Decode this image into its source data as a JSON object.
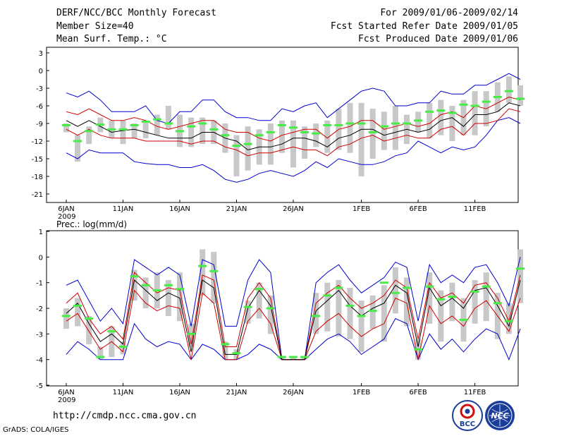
{
  "header": {
    "title": "DERF/NCC/BCC Monthly Forecast",
    "member_size": "Member Size=40",
    "variable": "Mean Surf. Temp.: °C",
    "period": "For 2009/01/06-2009/02/14",
    "start_date": "Fcst Started Refer Date 2009/01/05",
    "produced_date": "Fcst Produced Date 2009/01/06"
  },
  "footer": {
    "url": "http://cmdp.ncc.cma.gov.cn",
    "credit": "GrADS: COLA/IGES",
    "logo_bcc": "BCC",
    "logo_ncc": "NCC"
  },
  "colors": {
    "bound": "#0000cc",
    "spread": "#cc0000",
    "mean": "#000000",
    "box": "#c8c8c8",
    "member": "#44ee44"
  },
  "chart_data": [
    {
      "type": "box-plume",
      "title": "Mean Surf. Temp.: °C",
      "ylim": [
        -22,
        4
      ],
      "yticks": [
        3,
        0,
        -3,
        -6,
        -9,
        -12,
        -15,
        -18,
        -21
      ],
      "xlabels": [
        "6JAN",
        "11JAN",
        "16JAN",
        "21JAN",
        "26JAN",
        "1FEB",
        "6FEB",
        "11FEB"
      ],
      "xlabel_days": [
        0,
        5,
        10,
        15,
        20,
        26,
        31,
        36
      ],
      "year_label": "2009",
      "upper": [
        -3.8,
        -4.5,
        -3.5,
        -5.0,
        -7.0,
        -7.0,
        -7.0,
        -6.0,
        -8.5,
        -9.0,
        -7.0,
        -7.0,
        -5.0,
        -5.0,
        -7.0,
        -8.0,
        -8.0,
        -8.5,
        -8.5,
        -6.5,
        -7.0,
        -6.0,
        -5.5,
        -8.0,
        -6.5,
        -5.0,
        -3.5,
        -3.0,
        -3.5,
        -6.0,
        -6.0,
        -5.5,
        -5.5,
        -3.5,
        -4.0,
        -4.0,
        -2.5,
        -2.5,
        -1.5,
        -0.5,
        -1.5
      ],
      "hi": [
        -7.0,
        -7.5,
        -6.5,
        -7.5,
        -8.5,
        -8.5,
        -8.0,
        -8.5,
        -9.5,
        -10.0,
        -9.5,
        -9.0,
        -8.5,
        -8.5,
        -10.0,
        -10.5,
        -10.5,
        -11.5,
        -12.0,
        -11.0,
        -10.5,
        -10.0,
        -10.0,
        -11.5,
        -10.0,
        -9.5,
        -8.5,
        -8.5,
        -10.0,
        -9.5,
        -9.0,
        -9.5,
        -9.0,
        -7.5,
        -7.0,
        -8.0,
        -6.0,
        -6.5,
        -5.5,
        -4.5,
        -5.0
      ],
      "mean": [
        -8.5,
        -9.5,
        -8.5,
        -9.5,
        -10.5,
        -10.2,
        -10.0,
        -10.5,
        -11.0,
        -11.5,
        -11.5,
        -11.5,
        -10.5,
        -10.5,
        -11.5,
        -12.0,
        -13.5,
        -13.0,
        -13.0,
        -12.5,
        -11.5,
        -11.5,
        -12.0,
        -13.0,
        -11.5,
        -11.0,
        -10.0,
        -10.0,
        -11.0,
        -10.5,
        -10.0,
        -10.5,
        -10.0,
        -8.5,
        -8.0,
        -9.5,
        -7.5,
        -7.5,
        -7.0,
        -5.5,
        -6.0
      ],
      "lo": [
        -10.0,
        -11.0,
        -10.0,
        -11.0,
        -11.5,
        -11.5,
        -11.5,
        -12.0,
        -12.0,
        -12.0,
        -12.0,
        -12.5,
        -12.0,
        -12.0,
        -13.0,
        -13.5,
        -14.5,
        -14.0,
        -14.0,
        -13.5,
        -13.0,
        -13.5,
        -13.5,
        -14.5,
        -13.0,
        -12.5,
        -11.5,
        -11.0,
        -12.0,
        -11.5,
        -11.0,
        -11.5,
        -11.5,
        -10.0,
        -9.5,
        -11.0,
        -9.0,
        -9.0,
        -8.5,
        -6.5,
        -7.0
      ],
      "lower": [
        -14.0,
        -15.0,
        -13.5,
        -14.0,
        -14.0,
        -14.0,
        -15.5,
        -15.8,
        -16.0,
        -16.0,
        -16.5,
        -16.5,
        -16.0,
        -17.0,
        -18.5,
        -19.0,
        -18.5,
        -17.5,
        -17.0,
        -17.5,
        -18.0,
        -17.0,
        -15.5,
        -16.5,
        -15.0,
        -15.5,
        -16.0,
        -16.0,
        -15.5,
        -14.5,
        -14.0,
        -12.0,
        -13.0,
        -14.0,
        -13.0,
        -13.5,
        -13.0,
        -11.0,
        -8.5,
        -8.0,
        -9.0
      ],
      "box_top": [
        -9.0,
        -11.0,
        -9.5,
        -8.0,
        -8.5,
        -8.5,
        -9.0,
        -8.5,
        -7.5,
        -6.0,
        -7.5,
        -8.0,
        -8.0,
        -8.5,
        -9.0,
        -11.0,
        -9.5,
        -10.0,
        -9.0,
        -8.5,
        -8.5,
        -9.5,
        -9.0,
        -8.5,
        -6.5,
        -5.5,
        -5.5,
        -6.5,
        -7.0,
        -6.0,
        -7.5,
        -7.0,
        -5.5,
        -5.0,
        -6.0,
        -5.0,
        -3.5,
        -3.5,
        -2.0,
        -1.0,
        -2.5
      ],
      "box_bot": [
        -10.5,
        -15.5,
        -12.5,
        -10.5,
        -11.5,
        -12.5,
        -11.5,
        -11.5,
        -11.0,
        -10.0,
        -13.0,
        -13.0,
        -12.5,
        -12.5,
        -14.0,
        -18.0,
        -17.0,
        -16.0,
        -16.0,
        -14.0,
        -16.5,
        -15.0,
        -13.0,
        -14.0,
        -13.5,
        -14.0,
        -18.0,
        -15.0,
        -13.5,
        -13.5,
        -12.5,
        -10.5,
        -11.5,
        -11.0,
        -12.0,
        -11.0,
        -11.0,
        -9.5,
        -7.0,
        -5.5,
        -6.0
      ],
      "member_mark": [
        -9.3,
        -12.0,
        -10.3,
        -9.2,
        -10.0,
        -10.0,
        -9.3,
        -8.7,
        -8.3,
        -9.0,
        -10.3,
        -9.5,
        -9.0,
        -10.0,
        -11.0,
        -12.8,
        -12.5,
        -11.0,
        -10.5,
        -9.3,
        -9.7,
        -10.5,
        -10.7,
        -9.3,
        -9.3,
        -9.0,
        -9.0,
        -10.5,
        -9.5,
        -9.0,
        -9.0,
        -8.5,
        -7.0,
        -6.8,
        -7.2,
        -5.8,
        -6.0,
        -5.3,
        -4.5,
        -3.5,
        -4.8
      ]
    },
    {
      "type": "box-plume",
      "title": "Prec.: log(mm/d)",
      "ylim": [
        -5,
        1
      ],
      "yticks": [
        1,
        0,
        -1,
        -2,
        -3,
        -4,
        -5
      ],
      "xlabels": [
        "6JAN",
        "11JAN",
        "16JAN",
        "21JAN",
        "26JAN",
        "1FEB",
        "6FEB",
        "11FEB"
      ],
      "xlabel_days": [
        0,
        5,
        10,
        15,
        20,
        26,
        31,
        36
      ],
      "year_label": "2009",
      "upper": [
        -1.1,
        -0.9,
        -1.7,
        -2.5,
        -2.0,
        -2.6,
        -0.1,
        -0.4,
        -0.7,
        -0.4,
        -0.7,
        -2.7,
        -0.1,
        -0.3,
        -2.7,
        -2.7,
        -0.9,
        -0.1,
        -0.6,
        -4.0,
        -4.0,
        -4.0,
        -1.0,
        -0.6,
        -0.3,
        -0.9,
        -1.4,
        -1.1,
        -0.8,
        -0.2,
        -0.4,
        -2.5,
        -0.3,
        -1.0,
        -0.7,
        -1.0,
        -0.4,
        -0.3,
        -1.0,
        -1.9,
        0.0
      ],
      "hi": [
        -1.8,
        -1.4,
        -2.4,
        -3.0,
        -2.7,
        -3.2,
        -0.6,
        -1.0,
        -1.4,
        -1.2,
        -1.3,
        -3.4,
        -0.7,
        -0.9,
        -3.5,
        -3.5,
        -1.6,
        -1.0,
        -1.6,
        -4.0,
        -4.0,
        -4.0,
        -1.8,
        -1.4,
        -1.1,
        -1.6,
        -2.0,
        -1.8,
        -1.5,
        -0.9,
        -1.2,
        -3.2,
        -1.0,
        -1.6,
        -1.4,
        -1.8,
        -1.1,
        -1.0,
        -1.6,
        -2.5,
        -0.7
      ],
      "mean": [
        -2.2,
        -1.8,
        -2.6,
        -3.3,
        -3.0,
        -3.4,
        -0.9,
        -1.3,
        -1.7,
        -1.4,
        -1.6,
        -3.7,
        -0.9,
        -1.2,
        -3.8,
        -3.8,
        -2.0,
        -1.3,
        -1.9,
        -4.0,
        -4.0,
        -4.0,
        -2.1,
        -1.7,
        -1.3,
        -1.9,
        -2.3,
        -2.0,
        -1.8,
        -1.1,
        -1.4,
        -3.5,
        -1.2,
        -1.9,
        -1.6,
        -2.0,
        -1.3,
        -1.2,
        -1.9,
        -2.7,
        -0.9
      ],
      "lo": [
        -2.5,
        -2.2,
        -2.9,
        -3.6,
        -3.3,
        -3.7,
        -1.3,
        -1.8,
        -2.1,
        -1.9,
        -2.0,
        -4.0,
        -1.4,
        -1.8,
        -4.0,
        -4.0,
        -2.5,
        -2.0,
        -2.6,
        -4.0,
        -4.0,
        -4.0,
        -2.9,
        -2.5,
        -2.2,
        -2.7,
        -3.1,
        -2.8,
        -2.6,
        -1.6,
        -1.8,
        -4.0,
        -1.9,
        -2.6,
        -2.3,
        -2.7,
        -2.0,
        -1.7,
        -2.3,
        -2.9,
        -1.6
      ],
      "lower": [
        -3.8,
        -3.3,
        -3.6,
        -4.0,
        -4.0,
        -4.0,
        -2.6,
        -3.2,
        -3.5,
        -3.3,
        -3.4,
        -4.0,
        -3.4,
        -3.6,
        -4.0,
        -4.0,
        -3.8,
        -3.4,
        -3.6,
        -4.0,
        -4.0,
        -4.0,
        -3.6,
        -3.2,
        -3.0,
        -3.3,
        -3.8,
        -3.5,
        -3.2,
        -2.4,
        -2.6,
        -4.0,
        -3.0,
        -3.6,
        -3.2,
        -3.7,
        -3.2,
        -2.8,
        -3.0,
        -4.0,
        -2.8
      ],
      "box_top": [
        -2.0,
        -1.6,
        -2.3,
        -3.5,
        -2.7,
        -3.3,
        -0.5,
        -0.8,
        -0.6,
        -0.9,
        -0.6,
        -2.6,
        0.3,
        0.2,
        -3.3,
        -3.6,
        -1.7,
        -1.0,
        -1.5,
        -3.9,
        -3.9,
        -3.9,
        -1.4,
        -1.0,
        -0.9,
        -1.2,
        -1.7,
        -1.5,
        -1.1,
        -0.4,
        -0.8,
        -3.2,
        -0.6,
        -1.3,
        -1.0,
        -1.6,
        -0.9,
        -0.6,
        -1.4,
        -1.8,
        0.3
      ],
      "box_bot": [
        -2.8,
        -2.7,
        -3.4,
        -4.0,
        -3.9,
        -3.8,
        -1.7,
        -2.0,
        -2.0,
        -2.3,
        -2.5,
        -3.5,
        -1.5,
        -1.8,
        -4.0,
        -4.0,
        -2.6,
        -2.4,
        -3.0,
        -4.0,
        -4.0,
        -4.0,
        -3.0,
        -2.9,
        -3.1,
        -3.2,
        -3.7,
        -2.8,
        -3.3,
        -2.2,
        -2.7,
        -4.0,
        -2.6,
        -3.3,
        -2.5,
        -3.3,
        -2.6,
        -2.5,
        -3.2,
        -3.0,
        -1.8
      ],
      "member_mark": [
        -2.3,
        -1.9,
        -2.4,
        -3.9,
        -2.9,
        -3.5,
        -0.75,
        -1.1,
        -1.3,
        -1.1,
        -1.25,
        -3.0,
        -0.35,
        -0.55,
        -3.4,
        -3.75,
        -1.95,
        -1.25,
        -2.0,
        -3.9,
        -3.9,
        -3.9,
        -2.3,
        -1.5,
        -1.2,
        -1.9,
        -2.3,
        -2.1,
        -1.0,
        -1.4,
        -1.2,
        -3.6,
        -1.15,
        -1.65,
        -1.55,
        -2.45,
        -1.35,
        -1.15,
        -1.8,
        -2.5,
        -0.45
      ]
    }
  ]
}
